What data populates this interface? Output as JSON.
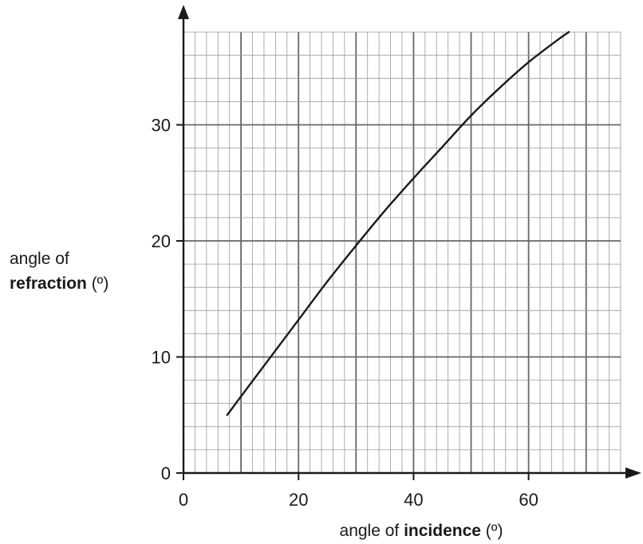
{
  "chart_data": {
    "type": "line",
    "xlabel": {
      "prefix": "angle of ",
      "bold": "incidence",
      "suffix": " (º)"
    },
    "ylabel": {
      "line1": "angle of",
      "bold": "refraction",
      "suffix": " (º)"
    },
    "xlim": [
      0,
      76
    ],
    "ylim": [
      0,
      38
    ],
    "x_ticks": [
      0,
      20,
      40,
      60
    ],
    "y_ticks": [
      0,
      10,
      20,
      30
    ],
    "x_tick_labels": [
      "0",
      "20",
      "40",
      "60"
    ],
    "y_tick_labels": [
      "0",
      "10",
      "20",
      "30"
    ],
    "grid": {
      "minor_step": 2,
      "major_step": 10,
      "on": true
    },
    "series": [
      {
        "x": [
          7.6,
          10,
          15,
          20,
          25,
          30,
          35,
          40,
          45,
          50,
          55,
          60,
          65,
          67
        ],
        "y": [
          5.0,
          6.6,
          9.9,
          13.2,
          16.5,
          19.6,
          22.6,
          25.4,
          28.1,
          30.8,
          33.2,
          35.4,
          37.3,
          38.0
        ]
      }
    ]
  }
}
